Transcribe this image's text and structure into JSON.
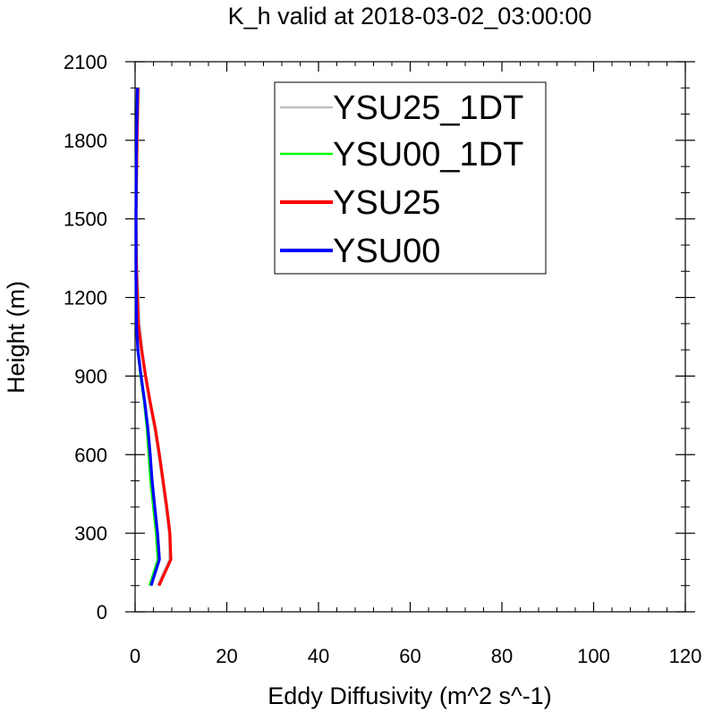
{
  "chart_data": {
    "type": "line",
    "title": "K_h valid at 2018-03-02_03:00:00",
    "xlabel": "Eddy Diffusivity (m^2 s^-1)",
    "ylabel": "Height (m)",
    "xlim": [
      0,
      120
    ],
    "ylim": [
      0,
      2100
    ],
    "xticks": [
      "0",
      "20",
      "40",
      "60",
      "80",
      "100",
      "120"
    ],
    "yticks": [
      "0",
      "300",
      "600",
      "900",
      "1200",
      "1500",
      "1800",
      "2100"
    ],
    "grid": false,
    "legend_position": "top-center",
    "series": [
      {
        "name": "YSU25_1DT",
        "color": "#c0c0c0",
        "points": [
          [
            0.8,
            2000
          ],
          [
            0.6,
            1900
          ],
          [
            0.3,
            1700
          ],
          [
            0.2,
            1500
          ],
          [
            0.4,
            1300
          ],
          [
            0.9,
            1100
          ],
          [
            1.5,
            1000
          ],
          [
            2.2,
            900
          ],
          [
            3.2,
            800
          ],
          [
            4.3,
            700
          ],
          [
            5.2,
            600
          ],
          [
            6.0,
            500
          ],
          [
            6.8,
            400
          ],
          [
            7.5,
            300
          ],
          [
            7.6,
            200
          ],
          [
            5.0,
            100
          ]
        ]
      },
      {
        "name": "YSU00_1DT",
        "color": "#00ff00",
        "points": [
          [
            0.5,
            2000
          ],
          [
            0.3,
            1800
          ],
          [
            0.2,
            1500
          ],
          [
            0.2,
            1300
          ],
          [
            0.3,
            1100
          ],
          [
            0.6,
            1000
          ],
          [
            1.2,
            900
          ],
          [
            2.0,
            800
          ],
          [
            2.6,
            700
          ],
          [
            3.0,
            600
          ],
          [
            3.4,
            500
          ],
          [
            4.0,
            400
          ],
          [
            4.6,
            300
          ],
          [
            5.0,
            200
          ],
          [
            3.2,
            100
          ]
        ]
      },
      {
        "name": "YSU25",
        "color": "#ff0000",
        "points": [
          [
            0.6,
            2000
          ],
          [
            0.4,
            1800
          ],
          [
            0.2,
            1500
          ],
          [
            0.3,
            1300
          ],
          [
            0.7,
            1100
          ],
          [
            1.4,
            1000
          ],
          [
            2.3,
            900
          ],
          [
            3.3,
            800
          ],
          [
            4.4,
            700
          ],
          [
            5.3,
            600
          ],
          [
            6.1,
            500
          ],
          [
            6.9,
            400
          ],
          [
            7.6,
            300
          ],
          [
            7.8,
            200
          ],
          [
            5.2,
            100
          ]
        ]
      },
      {
        "name": "YSU00",
        "color": "#0000ff",
        "points": [
          [
            0.5,
            2000
          ],
          [
            0.3,
            1800
          ],
          [
            0.2,
            1500
          ],
          [
            0.2,
            1300
          ],
          [
            0.3,
            1100
          ],
          [
            0.6,
            1000
          ],
          [
            1.3,
            900
          ],
          [
            2.1,
            800
          ],
          [
            2.8,
            700
          ],
          [
            3.3,
            600
          ],
          [
            3.7,
            500
          ],
          [
            4.3,
            400
          ],
          [
            4.9,
            300
          ],
          [
            5.3,
            200
          ],
          [
            3.5,
            100
          ]
        ]
      }
    ]
  }
}
